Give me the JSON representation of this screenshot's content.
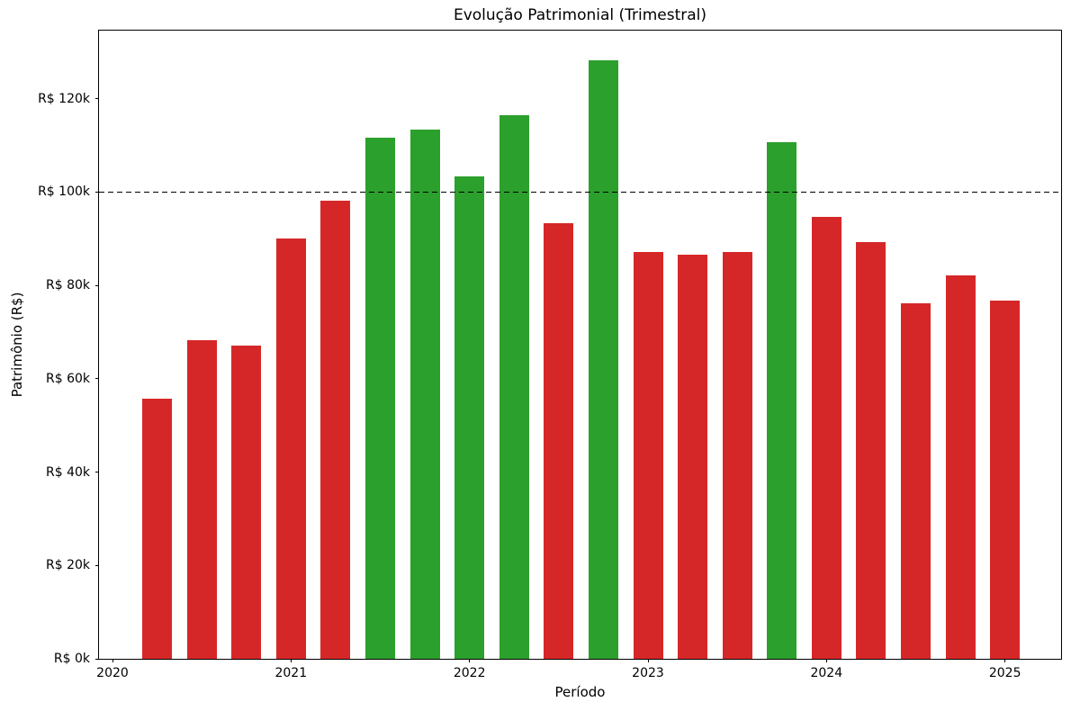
{
  "figure": {
    "background_color": "#ffffff",
    "text_color": "#000000"
  },
  "chart_data": {
    "type": "bar",
    "title": "Evolução Patrimonial (Trimestral)",
    "xlabel": "Período",
    "ylabel": "Patrimônio (R$)",
    "value_unit": "R$ thousands",
    "categories": [
      "2020-Q2",
      "2020-Q3",
      "2020-Q4",
      "2021-Q1",
      "2021-Q2",
      "2021-Q3",
      "2021-Q4",
      "2022-Q1",
      "2022-Q2",
      "2022-Q3",
      "2022-Q4",
      "2023-Q1",
      "2023-Q2",
      "2023-Q3",
      "2023-Q4",
      "2024-Q1",
      "2024-Q2",
      "2024-Q3",
      "2024-Q4",
      "2025-Q1"
    ],
    "values": [
      55.7,
      68.3,
      67.2,
      90.0,
      98.2,
      111.7,
      113.4,
      103.4,
      116.5,
      93.3,
      128.2,
      87.1,
      86.5,
      87.1,
      110.7,
      94.7,
      89.3,
      76.1,
      82.2,
      76.8
    ],
    "bar_color_rule": {
      "threshold": 100,
      "at_or_above_color": "#2ca02c",
      "below_color": "#d62728"
    },
    "reference_line": {
      "value": 100,
      "style": "dashed",
      "color": "#000000"
    },
    "x_tick_labels": [
      "2020",
      "2021",
      "2022",
      "2023",
      "2024",
      "2025"
    ],
    "y_ticks": [
      {
        "value": 0,
        "label": "R$ 0k"
      },
      {
        "value": 20,
        "label": "R$ 20k"
      },
      {
        "value": 40,
        "label": "R$ 40k"
      },
      {
        "value": 60,
        "label": "R$ 60k"
      },
      {
        "value": 80,
        "label": "R$ 80k"
      },
      {
        "value": 100,
        "label": "R$ 100k"
      },
      {
        "value": 120,
        "label": "R$ 120k"
      }
    ],
    "ylim": [
      0,
      134.6
    ],
    "grid": false,
    "legend": false
  }
}
